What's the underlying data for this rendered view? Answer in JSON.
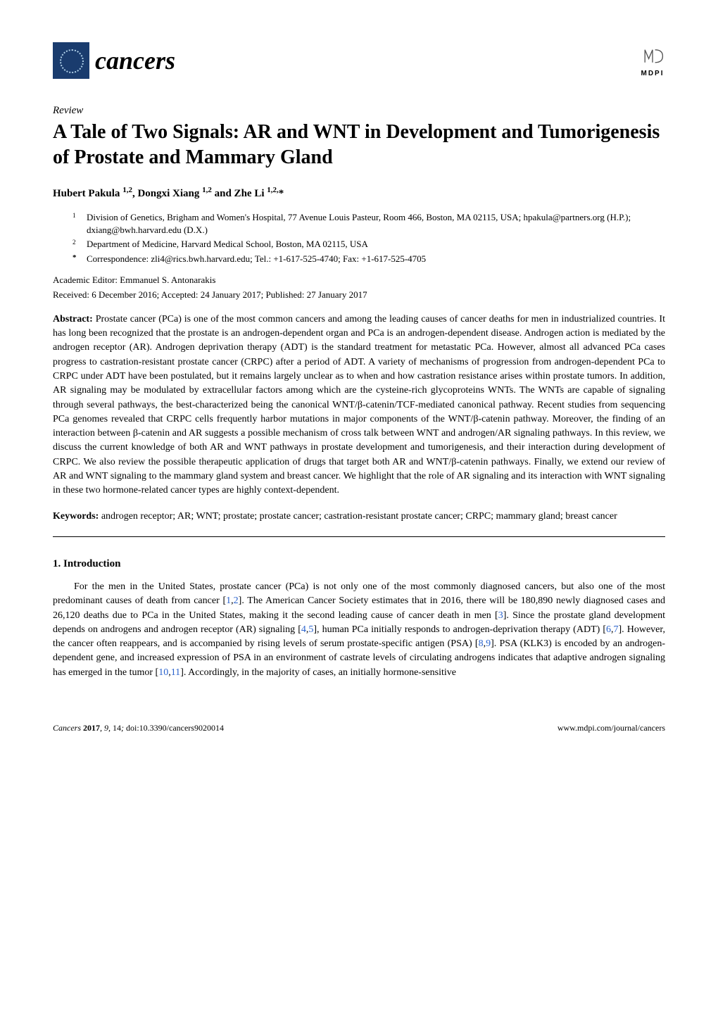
{
  "header": {
    "journal_name": "cancers",
    "publisher": "MDPI"
  },
  "article": {
    "type": "Review",
    "title": "A Tale of Two Signals: AR and WNT in Development and Tumorigenesis of Prostate and Mammary Gland",
    "authors_html": "Hubert Pakula <sup>1,2</sup>, Dongxi Xiang <sup>1,2</sup> and Zhe Li <sup>1,2,</sup>*"
  },
  "affiliations": [
    {
      "num": "1",
      "text": "Division of Genetics, Brigham and Women's Hospital, 77 Avenue Louis Pasteur, Room 466, Boston, MA 02115, USA; hpakula@partners.org (H.P.); dxiang@bwh.harvard.edu (D.X.)"
    },
    {
      "num": "2",
      "text": "Department of Medicine, Harvard Medical School, Boston, MA 02115, USA"
    },
    {
      "num": "*",
      "text": "Correspondence: zli4@rics.bwh.harvard.edu; Tel.: +1-617-525-4740; Fax: +1-617-525-4705"
    }
  ],
  "editor": "Academic Editor: Emmanuel S. Antonarakis",
  "dates": "Received: 6 December 2016; Accepted: 24 January 2017; Published: 27 January 2017",
  "abstract": {
    "label": "Abstract:",
    "text": " Prostate cancer (PCa) is one of the most common cancers and among the leading causes of cancer deaths for men in industrialized countries. It has long been recognized that the prostate is an androgen-dependent organ and PCa is an androgen-dependent disease. Androgen action is mediated by the androgen receptor (AR). Androgen deprivation therapy (ADT) is the standard treatment for metastatic PCa. However, almost all advanced PCa cases progress to castration-resistant prostate cancer (CRPC) after a period of ADT. A variety of mechanisms of progression from androgen-dependent PCa to CRPC under ADT have been postulated, but it remains largely unclear as to when and how castration resistance arises within prostate tumors. In addition, AR signaling may be modulated by extracellular factors among which are the cysteine-rich glycoproteins WNTs. The WNTs are capable of signaling through several pathways, the best-characterized being the canonical WNT/β-catenin/TCF-mediated canonical pathway. Recent studies from sequencing PCa genomes revealed that CRPC cells frequently harbor mutations in major components of the WNT/β-catenin pathway. Moreover, the finding of an interaction between β-catenin and AR suggests a possible mechanism of cross talk between WNT and androgen/AR signaling pathways. In this review, we discuss the current knowledge of both AR and WNT pathways in prostate development and tumorigenesis, and their interaction during development of CRPC. We also review the possible therapeutic application of drugs that target both AR and WNT/β-catenin pathways. Finally, we extend our review of AR and WNT signaling to the mammary gland system and breast cancer. We highlight that the role of AR signaling and its interaction with WNT signaling in these two hormone-related cancer types are highly context-dependent."
  },
  "keywords": {
    "label": "Keywords:",
    "text": " androgen receptor; AR; WNT; prostate; prostate cancer; castration-resistant prostate cancer; CRPC; mammary gland; breast cancer"
  },
  "section1": {
    "heading": "1. Introduction",
    "paragraph_parts": [
      "For the men in the United States, prostate cancer (PCa) is not only one of the most commonly diagnosed cancers, but also one of the most predominant causes of death from cancer [",
      "1",
      ",",
      "2",
      "]. The American Cancer Society estimates that in 2016, there will be 180,890 newly diagnosed cases and 26,120 deaths due to PCa in the United States, making it the second leading cause of cancer death in men [",
      "3",
      "]. Since the prostate gland development depends on androgens and androgen receptor (AR) signaling [",
      "4",
      ",",
      "5",
      "], human PCa initially responds to androgen-deprivation therapy (ADT) [",
      "6",
      ",",
      "7",
      "]. However, the cancer often reappears, and is accompanied by rising levels of serum prostate-specific antigen (PSA) [",
      "8",
      ",",
      "9",
      "]. PSA (KLK3) is encoded by an androgen-dependent gene, and increased expression of PSA in an environment of castrate levels of circulating androgens indicates that adaptive androgen signaling has emerged in the tumor [",
      "10",
      ",",
      "11",
      "]. Accordingly, in the majority of cases, an initially hormone-sensitive"
    ]
  },
  "footer": {
    "left_journal": "Cancers",
    "left_year": "2017",
    "left_volume": "9",
    "left_page": "14",
    "left_doi": "doi:10.3390/cancers9020014",
    "right": "www.mdpi.com/journal/cancers"
  },
  "colors": {
    "logo_bg": "#1a3c6e",
    "ref_link": "#2962cc",
    "mdpi_stroke": "#555555"
  }
}
